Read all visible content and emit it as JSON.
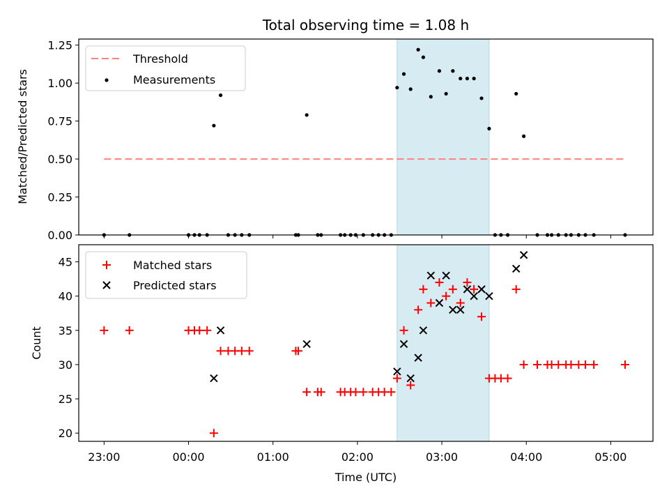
{
  "colors": {
    "threshold": "#ff8080",
    "measurements": "#000000",
    "matched": "#ff0000",
    "predicted": "#000000",
    "span": "#add8e6"
  },
  "chart_data": [
    {
      "panel": "top",
      "type": "scatter",
      "title": "Total observing time = 1.08 h",
      "ylabel": "Matched/Predicted stars",
      "xlabel": "",
      "xlim": [
        -1.3,
        5.5
      ],
      "ylim": [
        0,
        1.29
      ],
      "x_unit": "hours after 00:00 UTC",
      "yticks": [
        0.0,
        0.25,
        0.5,
        0.75,
        1.0,
        1.25
      ],
      "ytick_labels": [
        "0.00",
        "0.25",
        "0.50",
        "0.75",
        "1.00",
        "1.25"
      ],
      "xticks": [
        -1,
        0,
        1,
        2,
        3,
        4,
        5
      ],
      "xtick_labels": [
        "",
        "",
        "",
        "",
        "",
        "",
        ""
      ],
      "shaded_span": [
        2.47,
        3.56
      ],
      "legend": {
        "position": "upper-left",
        "entries": [
          "Threshold",
          "Measurements"
        ]
      },
      "series": [
        {
          "name": "Threshold",
          "kind": "dashed-line",
          "x": [
            -1.0,
            5.17
          ],
          "y": [
            0.5,
            0.5
          ]
        },
        {
          "name": "Measurements",
          "kind": "dot",
          "x": [
            -1.0,
            -0.7,
            0.0,
            0.07,
            0.13,
            0.22,
            0.3,
            0.38,
            0.47,
            0.55,
            0.63,
            0.72,
            1.27,
            1.3,
            1.4,
            1.53,
            1.57,
            1.8,
            1.85,
            1.92,
            1.98,
            2.07,
            2.18,
            2.25,
            2.32,
            2.4,
            2.47,
            2.55,
            2.63,
            2.72,
            2.78,
            2.87,
            2.97,
            3.05,
            3.13,
            3.22,
            3.3,
            3.38,
            3.47,
            3.56,
            3.63,
            3.7,
            3.78,
            3.88,
            3.97,
            4.13,
            4.25,
            4.3,
            4.38,
            4.47,
            4.53,
            4.62,
            4.7,
            4.8,
            5.17
          ],
          "y": [
            0.0,
            0.0,
            0.0,
            0.0,
            0.0,
            0.0,
            0.72,
            0.92,
            0.0,
            0.0,
            0.0,
            0.0,
            0.0,
            0.0,
            0.79,
            0.0,
            0.0,
            0.0,
            0.0,
            0.0,
            0.0,
            0.0,
            0.0,
            0.0,
            0.0,
            0.0,
            0.97,
            1.06,
            0.96,
            1.22,
            1.17,
            0.91,
            1.08,
            0.93,
            1.08,
            1.03,
            1.03,
            1.03,
            0.9,
            0.7,
            0.0,
            0.0,
            0.0,
            0.93,
            0.65,
            0.0,
            0.0,
            0.0,
            0.0,
            0.0,
            0.0,
            0.0,
            0.0,
            0.0,
            0.0
          ]
        }
      ]
    },
    {
      "panel": "bottom",
      "type": "scatter",
      "title": "",
      "ylabel": "Count",
      "xlabel": "Time (UTC)",
      "xlim": [
        -1.3,
        5.5
      ],
      "ylim": [
        18.8,
        47.5
      ],
      "x_unit": "hours after 00:00 UTC",
      "yticks": [
        20,
        25,
        30,
        35,
        40,
        45
      ],
      "ytick_labels": [
        "20",
        "25",
        "30",
        "35",
        "40",
        "45"
      ],
      "xticks": [
        -1,
        0,
        1,
        2,
        3,
        4,
        5
      ],
      "xtick_labels": [
        "23:00",
        "00:00",
        "01:00",
        "02:00",
        "03:00",
        "04:00",
        "05:00"
      ],
      "shaded_span": [
        2.47,
        3.56
      ],
      "legend": {
        "position": "upper-left",
        "entries": [
          "Matched stars",
          "Predicted stars"
        ]
      },
      "series": [
        {
          "name": "Matched stars",
          "kind": "plus",
          "x": [
            -1.0,
            -0.7,
            0.0,
            0.07,
            0.13,
            0.22,
            0.3,
            0.38,
            0.47,
            0.55,
            0.63,
            0.72,
            1.27,
            1.3,
            1.4,
            1.53,
            1.57,
            1.8,
            1.85,
            1.92,
            1.98,
            2.07,
            2.18,
            2.25,
            2.32,
            2.4,
            2.47,
            2.55,
            2.63,
            2.72,
            2.78,
            2.87,
            2.97,
            3.05,
            3.13,
            3.22,
            3.3,
            3.38,
            3.47,
            3.56,
            3.63,
            3.7,
            3.78,
            3.88,
            3.97,
            4.13,
            4.25,
            4.3,
            4.38,
            4.47,
            4.53,
            4.62,
            4.7,
            4.8,
            5.17
          ],
          "y": [
            35,
            35,
            35,
            35,
            35,
            35,
            20,
            32,
            32,
            32,
            32,
            32,
            32,
            32,
            26,
            26,
            26,
            26,
            26,
            26,
            26,
            26,
            26,
            26,
            26,
            26,
            28,
            35,
            27,
            38,
            41,
            39,
            42,
            40,
            41,
            39,
            42,
            41,
            37,
            28,
            28,
            28,
            28,
            41,
            30,
            30,
            30,
            30,
            30,
            30,
            30,
            30,
            30,
            30,
            30
          ]
        },
        {
          "name": "Predicted stars",
          "kind": "x",
          "x": [
            0.3,
            0.38,
            1.4,
            2.47,
            2.55,
            2.63,
            2.72,
            2.78,
            2.87,
            2.97,
            3.05,
            3.13,
            3.22,
            3.3,
            3.38,
            3.47,
            3.56,
            3.88,
            3.97
          ],
          "y": [
            28,
            35,
            33,
            29,
            33,
            28,
            31,
            35,
            43,
            39,
            43,
            38,
            38,
            41,
            40,
            41,
            40,
            44,
            46
          ]
        }
      ]
    }
  ]
}
